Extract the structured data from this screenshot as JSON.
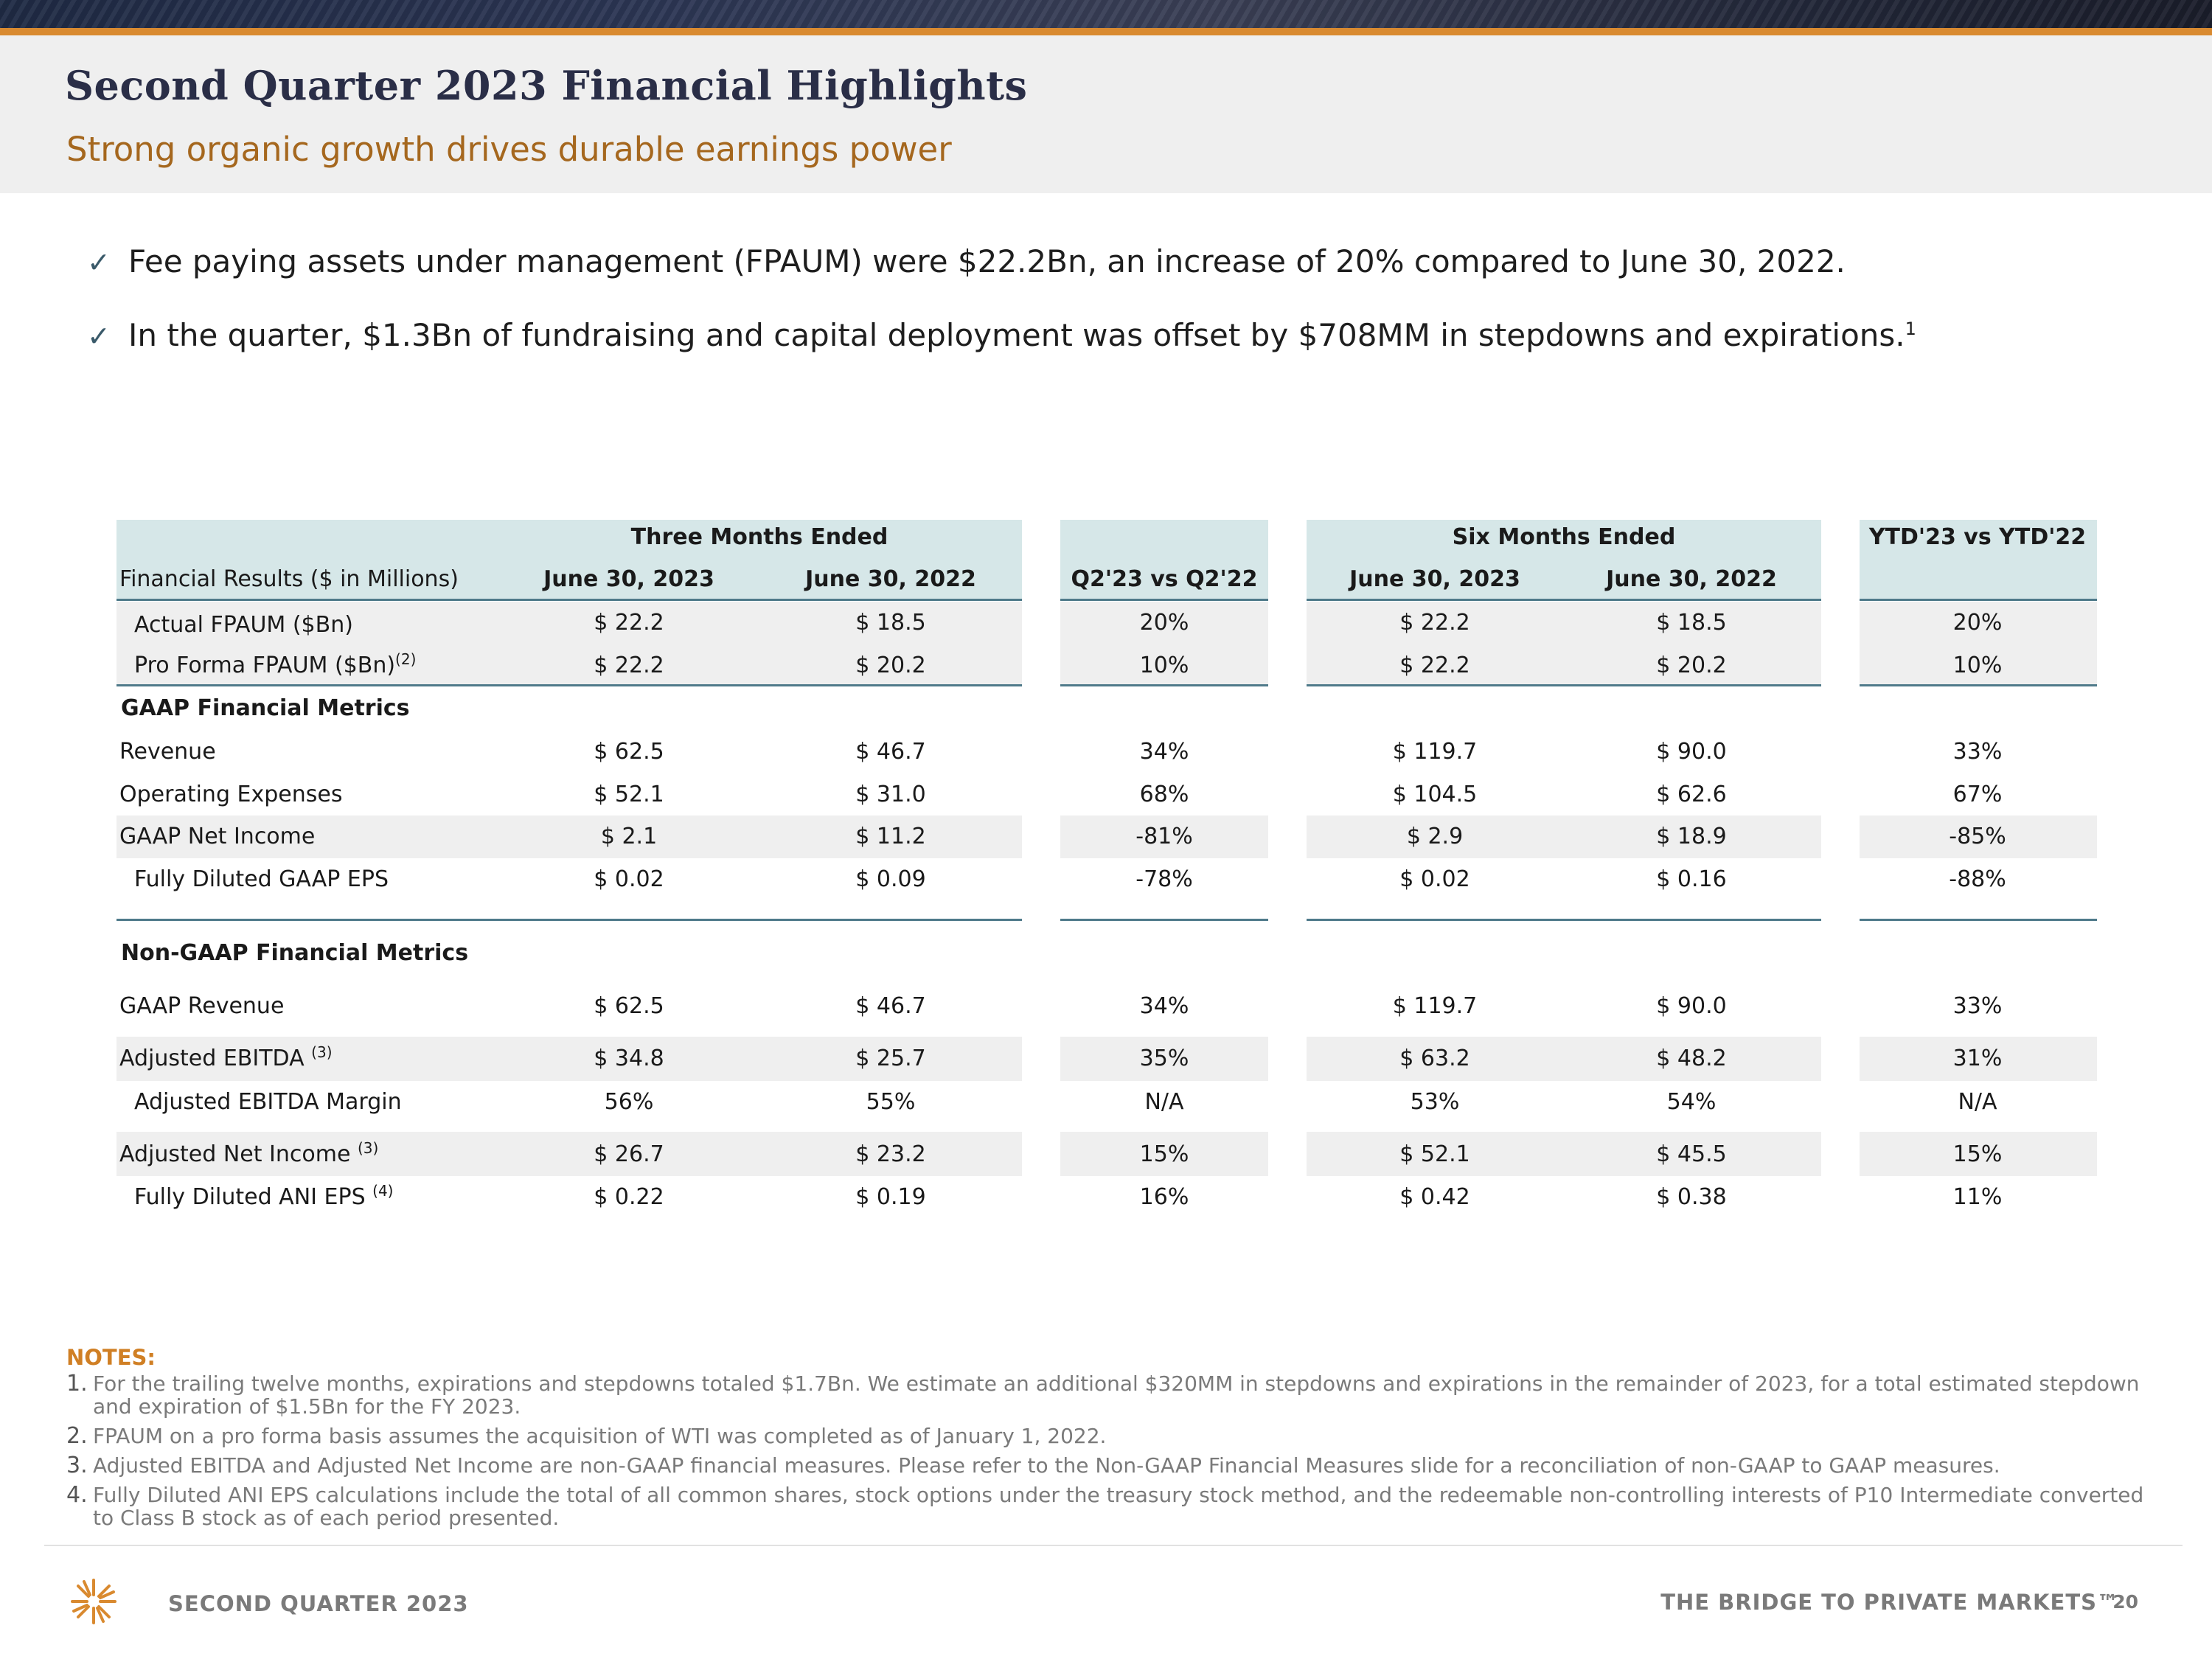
{
  "header": {
    "title": "Second Quarter 2023 Financial Highlights",
    "subtitle": "Strong organic growth drives durable earnings power"
  },
  "bullets": [
    {
      "text": "Fee paying assets under management (FPAUM) were $22.2Bn, an increase of 20% compared to June 30, 2022.",
      "sup": ""
    },
    {
      "text": "In the quarter, $1.3Bn of fundraising and capital deployment was offset by $708MM in stepdowns and expirations.",
      "sup": "1"
    }
  ],
  "check_glyph": "✓",
  "table": {
    "group_headers": {
      "three_months": "Three Months Ended",
      "six_months": "Six Months Ended",
      "ytd": "YTD'23 vs YTD'22"
    },
    "col_headers": {
      "label": "Financial Results ($ in Millions)",
      "q_2023": "June 30, 2023",
      "q_2022": "June 30, 2022",
      "q_change": "Q2'23 vs Q2'22",
      "s_2023": "June 30, 2023",
      "s_2022": "June 30, 2022"
    },
    "section_gaap": "GAAP Financial Metrics",
    "section_nongaap": "Non-GAAP Financial Metrics",
    "rows": {
      "actual_fpaum": {
        "label": "Actual FPAUM ($Bn)",
        "sup": "",
        "q23": "$ 22.2",
        "q22": "$ 18.5",
        "qchg": "20%",
        "s23": "$ 22.2",
        "s22": "$ 18.5",
        "ychg": "20%"
      },
      "proforma_fpaum": {
        "label": "Pro Forma FPAUM ($Bn)",
        "sup": "(2)",
        "q23": "$ 22.2",
        "q22": "$ 20.2",
        "qchg": "10%",
        "s23": "$ 22.2",
        "s22": "$ 20.2",
        "ychg": "10%"
      },
      "revenue": {
        "label": "Revenue",
        "sup": "",
        "q23": "$ 62.5",
        "q22": "$ 46.7",
        "qchg": "34%",
        "s23": "$ 119.7",
        "s22": "$ 90.0",
        "ychg": "33%"
      },
      "opex": {
        "label": "Operating Expenses",
        "sup": "",
        "q23": "$ 52.1",
        "q22": "$ 31.0",
        "qchg": "68%",
        "s23": "$ 104.5",
        "s22": "$ 62.6",
        "ychg": "67%"
      },
      "gaap_ni": {
        "label": "GAAP Net Income",
        "sup": "",
        "q23": "$ 2.1",
        "q22": "$ 11.2",
        "qchg": "-81%",
        "s23": "$ 2.9",
        "s22": "$ 18.9",
        "ychg": "-85%"
      },
      "gaap_eps": {
        "label": "Fully Diluted GAAP EPS",
        "sup": "",
        "q23": "$ 0.02",
        "q22": "$ 0.09",
        "qchg": "-78%",
        "s23": "$ 0.02",
        "s22": "$ 0.16",
        "ychg": "-88%"
      },
      "gaap_revenue": {
        "label": "GAAP Revenue",
        "sup": "",
        "q23": "$ 62.5",
        "q22": "$ 46.7",
        "qchg": "34%",
        "s23": "$ 119.7",
        "s22": "$ 90.0",
        "ychg": "33%"
      },
      "adj_ebitda": {
        "label": "Adjusted EBITDA",
        "sup": "(3)",
        "q23": "$ 34.8",
        "q22": "$ 25.7",
        "qchg": "35%",
        "s23": "$ 63.2",
        "s22": "$ 48.2",
        "ychg": "31%"
      },
      "adj_ebitda_margin": {
        "label": "Adjusted EBITDA Margin",
        "sup": "",
        "q23": "56%",
        "q22": "55%",
        "qchg": "N/A",
        "s23": "53%",
        "s22": "54%",
        "ychg": "N/A"
      },
      "adj_ni": {
        "label": "Adjusted Net Income",
        "sup": "(3)",
        "q23": "$ 26.7",
        "q22": "$ 23.2",
        "qchg": "15%",
        "s23": "$ 52.1",
        "s22": "$ 45.5",
        "ychg": "15%"
      },
      "ani_eps": {
        "label": "Fully Diluted ANI EPS",
        "sup": "(4)",
        "q23": "$ 0.22",
        "q22": "$ 0.19",
        "qchg": "16%",
        "s23": "$ 0.42",
        "s22": "$ 0.38",
        "ychg": "11%"
      }
    }
  },
  "notes": {
    "title": "NOTES:",
    "items": [
      {
        "num": "1.",
        "text": "For the trailing twelve months, expirations and stepdowns totaled $1.7Bn. We estimate an additional $320MM in stepdowns and expirations in the remainder of 2023, for a total estimated stepdown and expiration of $1.5Bn for the FY 2023."
      },
      {
        "num": "2.",
        "text": "FPAUM on a pro forma basis assumes the acquisition of WTI was completed as of January 1, 2022."
      },
      {
        "num": "3.",
        "text": "Adjusted EBITDA and Adjusted Net Income are non-GAAP financial measures. Please refer to the Non-GAAP Financial Measures slide for a reconciliation of non-GAAP to GAAP measures."
      },
      {
        "num": "4.",
        "text": "Fully Diluted ANI EPS calculations include the total of all common shares, stock options under the treasury stock method, and the redeemable non-controlling interests of P10 Intermediate converted to Class B stock as of each period presented."
      }
    ]
  },
  "footer": {
    "left": "SECOND QUARTER 2023",
    "right": "THE BRIDGE TO PRIVATE MARKETS™",
    "page": "20"
  },
  "colors": {
    "accent_orange": "#d98a30",
    "title_navy": "#2a2e47",
    "header_teal": "#d6e7e8",
    "rule_teal": "#4f7a8a"
  }
}
